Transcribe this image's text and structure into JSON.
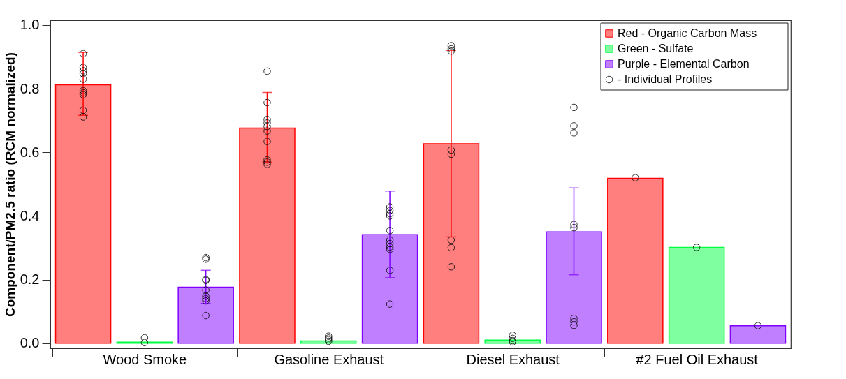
{
  "chart_data": {
    "type": "bar",
    "ylabel": "Component/PM2.5 ratio (RCM normalized)",
    "categories": [
      "Wood Smoke",
      "Gasoline Exhaust",
      "Diesel Exhaust",
      "#2 Fuel Oil Exhaust"
    ],
    "ylim": [
      -0.016,
      1.015
    ],
    "yticks": [
      {
        "value": 0,
        "label": "0.0"
      },
      0.2,
      0.4,
      0.6,
      0.8,
      {
        "value": 1,
        "label": "1.0"
      }
    ],
    "grid": false,
    "legend": "top right",
    "marker": "circle",
    "series": [
      {
        "name": "Red - Organic Carbon Mass",
        "color": "#ff7f7f",
        "values": [
          0.812,
          0.676,
          0.627,
          0.518
        ],
        "errors": [
          [
            0.716,
            0.914
          ],
          [
            0.569,
            0.788
          ],
          [
            0.334,
            0.92
          ],
          null
        ]
      },
      {
        "name": "Green - Sulfate",
        "color": "#7fffa0",
        "values": [
          0.003,
          0.007,
          0.01,
          0.301
        ]
      },
      {
        "name": "Purple - Elemental Carbon",
        "color": "#bf7fff",
        "values": [
          0.176,
          0.341,
          0.35,
          0.055
        ],
        "errors": [
          [
            0.125,
            0.229
          ],
          [
            0.206,
            0.478
          ],
          [
            0.215,
            0.488
          ],
          null
        ]
      },
      {
        "type": "scatter",
        "name": "- Individual Profiles",
        "color": "#000000",
        "x": [
          "Wood Smoke",
          "Wood Smoke",
          "Wood Smoke",
          "Wood Smoke",
          "Wood Smoke",
          "Wood Smoke",
          "Wood Smoke",
          "Wood Smoke",
          "Wood Smoke",
          "Wood Smoke",
          "Gasoline Exhaust",
          "Gasoline Exhaust",
          "Gasoline Exhaust",
          "Gasoline Exhaust",
          "Gasoline Exhaust",
          "Gasoline Exhaust",
          "Gasoline Exhaust",
          "Gasoline Exhaust",
          "Gasoline Exhaust",
          "Gasoline Exhaust",
          "Diesel Exhaust",
          "Diesel Exhaust",
          "Diesel Exhaust",
          "Diesel Exhaust",
          "Diesel Exhaust",
          "Diesel Exhaust",
          "Diesel Exhaust",
          "Diesel Exhaust",
          "#2 Fuel Oil Exhaust"
        ],
        "values": [
          0.91,
          0.867,
          0.856,
          0.847,
          0.83,
          0.794,
          0.787,
          0.781,
          0.732,
          0.711,
          0.855,
          0.756,
          0.703,
          0.692,
          0.681,
          0.667,
          0.634,
          0.576,
          0.569,
          0.562,
          0.935,
          0.925,
          0.918,
          0.607,
          0.594,
          0.324,
          0.3,
          0.24,
          0.52
        ]
      },
      {
        "type": "scatter",
        "color": "#000000",
        "x": [
          "Wood Smoke",
          "Wood Smoke",
          "Gasoline Exhaust",
          "Gasoline Exhaust",
          "Gasoline Exhaust",
          "Gasoline Exhaust",
          "Diesel Exhaust",
          "Diesel Exhaust",
          "Diesel Exhaust",
          "Diesel Exhaust",
          "#2 Fuel Oil Exhaust"
        ],
        "values": [
          0.017,
          0.002,
          0.022,
          0.016,
          0.011,
          0.006,
          0.025,
          0.015,
          0.008,
          0.004,
          0.301
        ]
      },
      {
        "type": "scatter",
        "color": "#000000",
        "x": [
          "Wood Smoke",
          "Wood Smoke",
          "Wood Smoke",
          "Wood Smoke",
          "Wood Smoke",
          "Wood Smoke",
          "Wood Smoke",
          "Wood Smoke",
          "Wood Smoke",
          "Gasoline Exhaust",
          "Gasoline Exhaust",
          "Gasoline Exhaust",
          "Gasoline Exhaust",
          "Gasoline Exhaust",
          "Gasoline Exhaust",
          "Gasoline Exhaust",
          "Gasoline Exhaust",
          "Gasoline Exhaust",
          "Gasoline Exhaust",
          "Gasoline Exhaust",
          "Diesel Exhaust",
          "Diesel Exhaust",
          "Diesel Exhaust",
          "Diesel Exhaust",
          "Diesel Exhaust",
          "Diesel Exhaust",
          "Diesel Exhaust",
          "Diesel Exhaust",
          "#2 Fuel Oil Exhaust"
        ],
        "values": [
          0.269,
          0.264,
          0.2,
          0.197,
          0.167,
          0.148,
          0.14,
          0.133,
          0.087,
          0.428,
          0.417,
          0.407,
          0.4,
          0.354,
          0.324,
          0.313,
          0.302,
          0.295,
          0.229,
          0.123,
          0.741,
          0.683,
          0.661,
          0.373,
          0.363,
          0.078,
          0.067,
          0.056,
          0.055
        ]
      }
    ]
  }
}
